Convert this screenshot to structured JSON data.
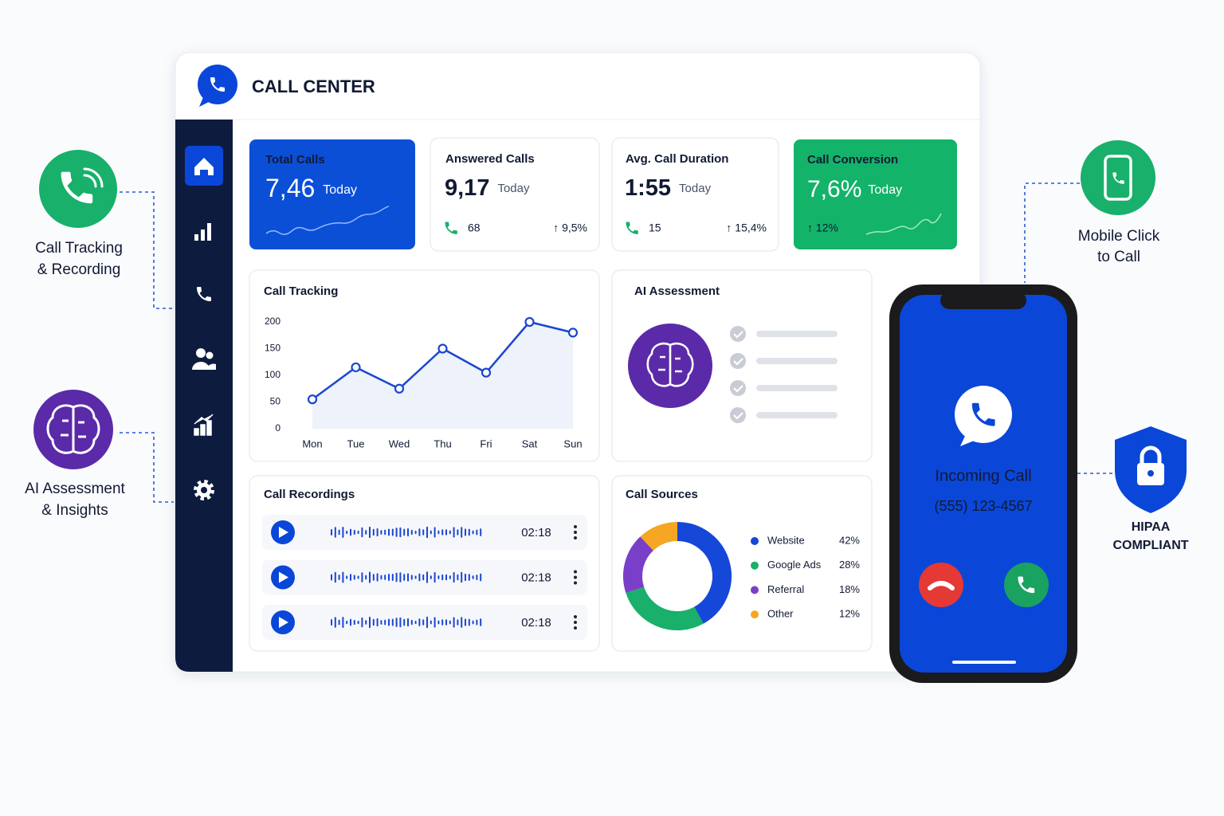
{
  "header": {
    "title": "CALL CENTER"
  },
  "features": [
    {
      "lines": [
        "Call Tracking",
        "& Recording"
      ]
    },
    {
      "lines": [
        "AI Assessment",
        "& Insights"
      ]
    },
    {
      "lines": [
        "Mobile Click",
        "to Call"
      ]
    },
    {
      "lines": [
        "HIPAA",
        "COMPLIANT"
      ]
    }
  ],
  "stats": [
    {
      "title": "Total Calls",
      "value": "7,46",
      "period": "Today"
    },
    {
      "title": "Answered Calls",
      "value": "9,17",
      "period": "Today",
      "count": 68,
      "change": "↑ 9,5%"
    },
    {
      "title": "Avg. Call Duration",
      "value": "1:55",
      "period": "Today",
      "count": 15,
      "change": "↑ 15,4%"
    },
    {
      "title": "Call Conversion",
      "value": "7,6%",
      "period": "Today",
      "change": "↑ 12%"
    }
  ],
  "chart_data": [
    {
      "type": "line",
      "title": "Call Tracking",
      "categories": [
        "Mon",
        "Tue",
        "Wed",
        "Thu",
        "Fri",
        "Sat",
        "Sun"
      ],
      "values": [
        55,
        115,
        75,
        150,
        105,
        200,
        180
      ],
      "color": "#1a46d1",
      "ylim": [
        0,
        200
      ],
      "yticks": [
        0,
        50,
        100,
        150,
        200
      ]
    },
    {
      "type": "donut",
      "title": "Call Sources",
      "categories": [
        "Website",
        "Google Ads",
        "Referral",
        "Other"
      ],
      "values": [
        42,
        28,
        18,
        12
      ],
      "value_labels": [
        "42%",
        "28%",
        "18%",
        "12%"
      ],
      "colors": [
        "#1547d8",
        "#18b06a",
        "#7a3fc9",
        "#f5a623"
      ]
    }
  ],
  "ai_assessment": {
    "title": "AI Assessment"
  },
  "recordings": {
    "title": "Call Recordings",
    "items": [
      {
        "duration": "02:18"
      },
      {
        "duration": "02:18"
      },
      {
        "duration": "02:18"
      }
    ]
  },
  "phone": {
    "status": "Incoming Call",
    "number": "(555) 123-4567"
  }
}
